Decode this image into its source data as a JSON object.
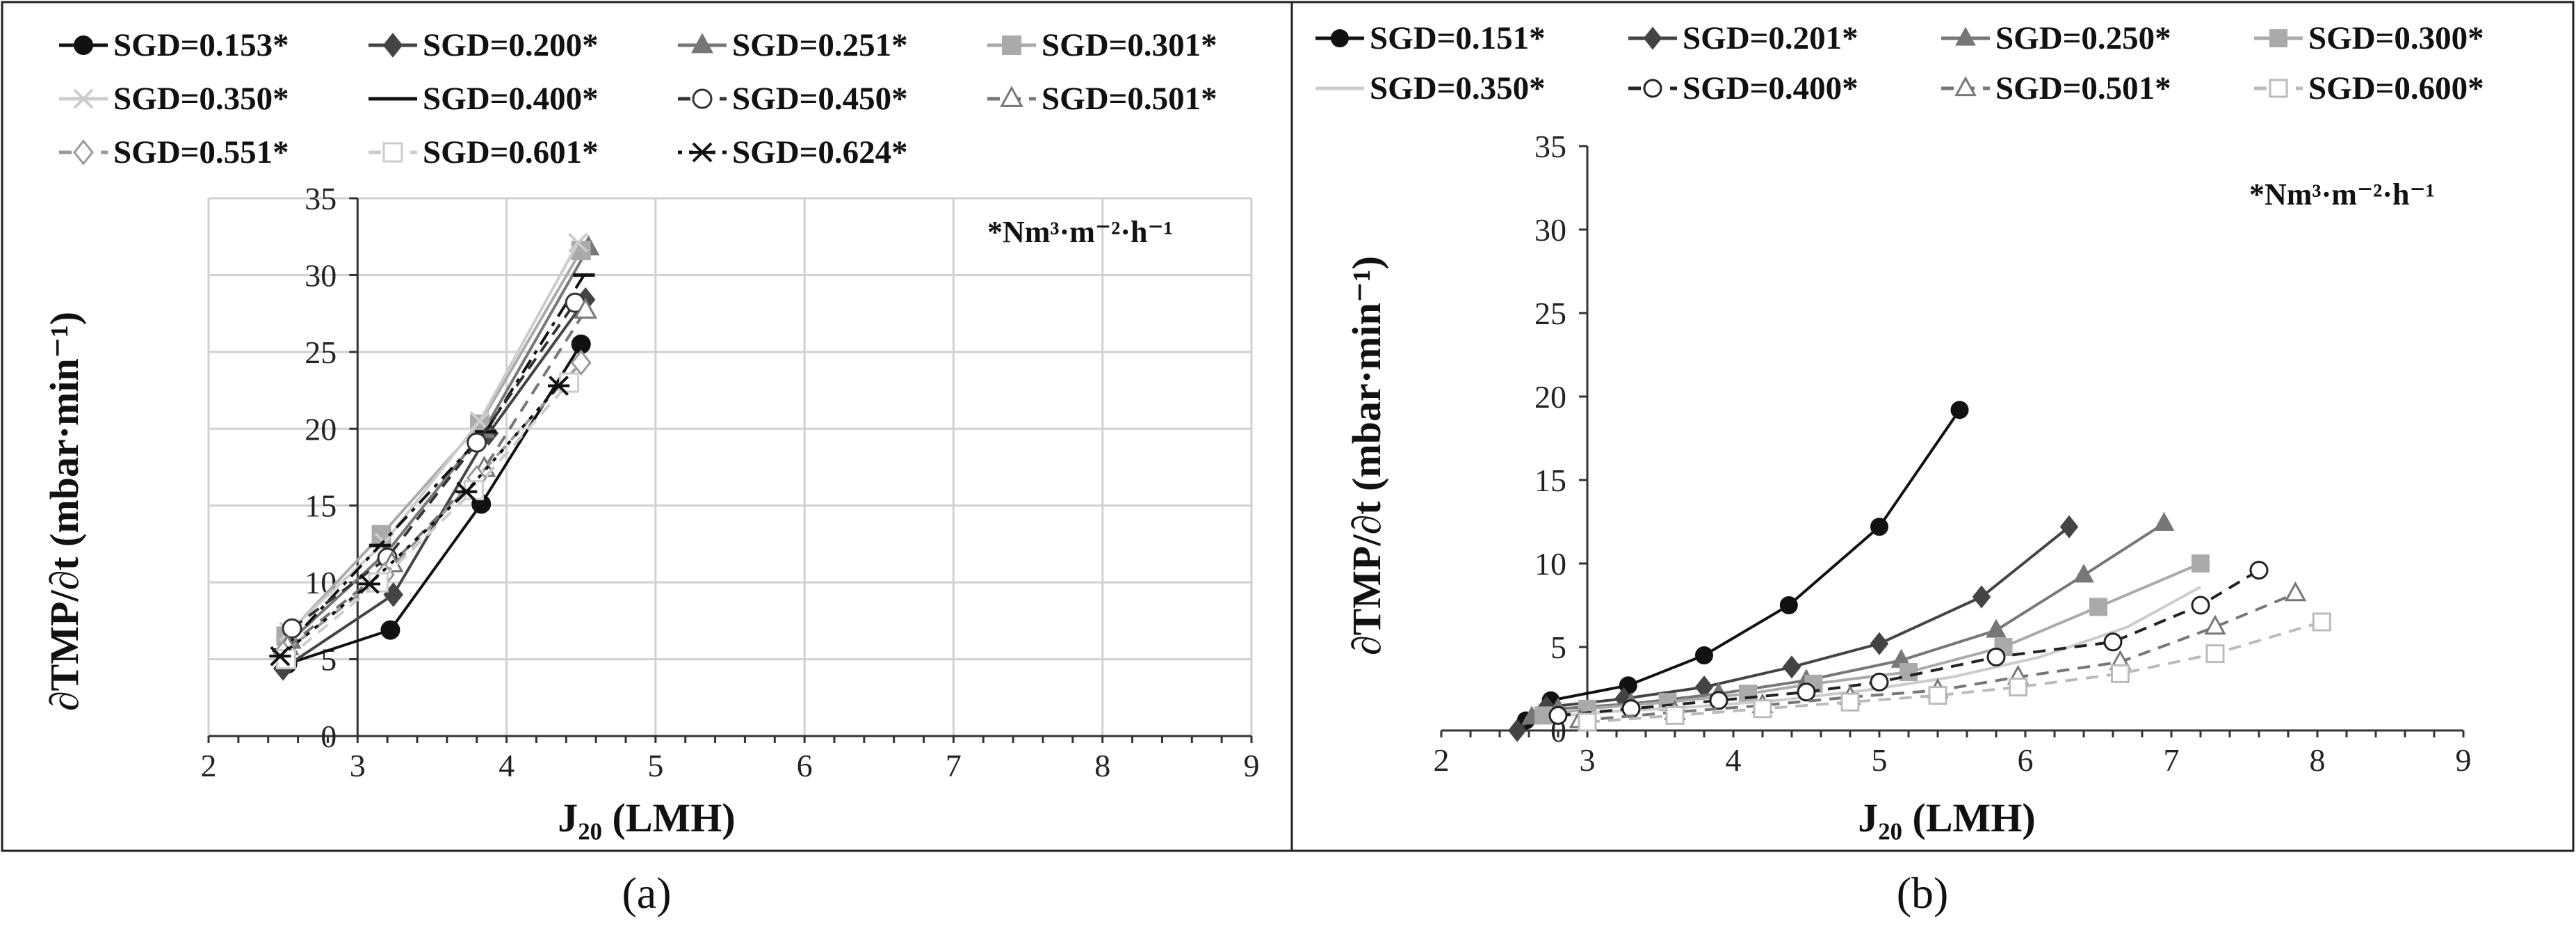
{
  "panels": [
    {
      "id": "a",
      "caption": "(a)",
      "ylabel": "∂TMP/∂t (mbar·min⁻¹)",
      "xlabel": "J₂₀ (LMH)",
      "unit_note": "*Nm³·m⁻²·h⁻¹"
    },
    {
      "id": "b",
      "caption": "(b)",
      "ylabel": "∂TMP/∂t (mbar·min⁻¹)",
      "xlabel": "J₂₀ (LMH)",
      "unit_note": "*Nm³·m⁻²·h⁻¹"
    }
  ],
  "chart_data": [
    {
      "type": "line",
      "panel": "a",
      "xlabel": "J₂₀ (LMH)",
      "ylabel": "∂TMP/∂t (mbar·min⁻¹)",
      "xlim": [
        2,
        9
      ],
      "ylim": [
        0,
        35
      ],
      "xticks": [
        2,
        3,
        4,
        5,
        6,
        7,
        8,
        9
      ],
      "yticks": [
        0,
        5,
        10,
        15,
        20,
        25,
        30,
        35
      ],
      "grid": true,
      "legend": "top",
      "series": [
        {
          "name": "SGD=0.153*",
          "color": "#111111",
          "marker": "circle-filled",
          "dash": "solid",
          "x": [
            2.53,
            3.22,
            3.83,
            4.5
          ],
          "y": [
            4.7,
            6.9,
            15.1,
            25.5
          ]
        },
        {
          "name": "SGD=0.200*",
          "color": "#444444",
          "marker": "diamond-filled",
          "dash": "solid",
          "x": [
            2.5,
            3.24,
            3.88,
            4.53
          ],
          "y": [
            4.4,
            9.2,
            19.7,
            28.4
          ]
        },
        {
          "name": "SGD=0.251*",
          "color": "#777777",
          "marker": "triangle-filled",
          "dash": "solid",
          "x": [
            2.55,
            3.2,
            3.85,
            4.55
          ],
          "y": [
            6.2,
            12.0,
            19.9,
            31.8
          ]
        },
        {
          "name": "SGD=0.301*",
          "color": "#aaaaaa",
          "marker": "square-filled",
          "dash": "solid",
          "x": [
            2.52,
            3.16,
            3.82,
            4.5
          ],
          "y": [
            6.5,
            13.1,
            20.3,
            31.6
          ]
        },
        {
          "name": "SGD=0.350*",
          "color": "#cccccc",
          "marker": "x",
          "dash": "solid",
          "x": [
            2.54,
            3.18,
            3.82,
            4.48
          ],
          "y": [
            6.8,
            12.6,
            20.5,
            32.1
          ]
        },
        {
          "name": "SGD=0.400*",
          "color": "#111111",
          "marker": "dash",
          "dash": "dashdot",
          "x": [
            2.5,
            3.15,
            3.86,
            4.52
          ],
          "y": [
            5.6,
            12.4,
            19.8,
            30.0
          ]
        },
        {
          "name": "SGD=0.450*",
          "color": "#333333",
          "marker": "circle-open",
          "dash": "dash",
          "x": [
            2.56,
            3.2,
            3.8,
            4.46
          ],
          "y": [
            7.0,
            11.6,
            19.1,
            28.2
          ]
        },
        {
          "name": "SGD=0.501*",
          "color": "#777777",
          "marker": "triangle-open",
          "dash": "dash",
          "x": [
            2.53,
            3.23,
            3.85,
            4.53
          ],
          "y": [
            5.8,
            11.2,
            17.4,
            27.7
          ]
        },
        {
          "name": "SGD=0.551*",
          "color": "#999999",
          "marker": "diamond-open",
          "dash": "dash",
          "x": [
            2.5,
            3.18,
            3.8,
            4.5
          ],
          "y": [
            5.4,
            10.5,
            16.8,
            24.3
          ]
        },
        {
          "name": "SGD=0.601*",
          "color": "#cccccc",
          "marker": "square-open",
          "dash": "dash",
          "x": [
            2.52,
            3.14,
            3.78,
            4.42
          ],
          "y": [
            5.0,
            10.0,
            16.0,
            23.0
          ]
        },
        {
          "name": "SGD=0.624*",
          "color": "#111111",
          "marker": "star",
          "dash": "dot",
          "x": [
            2.48,
            3.08,
            3.73,
            4.35
          ],
          "y": [
            5.2,
            9.9,
            15.9,
            22.8
          ]
        }
      ]
    },
    {
      "type": "line",
      "panel": "b",
      "xlabel": "J₂₀ (LMH)",
      "ylabel": "∂TMP/∂t (mbar·min⁻¹)",
      "xlim": [
        2,
        9
      ],
      "ylim": [
        0,
        35
      ],
      "xticks": [
        2,
        3,
        4,
        5,
        6,
        7,
        8,
        9
      ],
      "yticks": [
        0,
        5,
        10,
        15,
        20,
        25,
        30,
        35
      ],
      "grid": false,
      "legend": "top",
      "series": [
        {
          "name": "SGD=0.151*",
          "color": "#111111",
          "marker": "circle-filled",
          "dash": "solid",
          "x": [
            2.58,
            2.75,
            3.28,
            3.8,
            4.38,
            5.0,
            5.55
          ],
          "y": [
            0.6,
            1.8,
            2.7,
            4.5,
            7.5,
            12.2,
            19.2
          ]
        },
        {
          "name": "SGD=0.201*",
          "color": "#444444",
          "marker": "diamond-filled",
          "dash": "solid",
          "x": [
            2.52,
            2.72,
            3.25,
            3.8,
            4.4,
            5.0,
            5.7,
            6.3
          ],
          "y": [
            0.0,
            1.4,
            1.9,
            2.6,
            3.8,
            5.2,
            8.0,
            12.2
          ]
        },
        {
          "name": "SGD=0.250*",
          "color": "#777777",
          "marker": "triangle-filled",
          "dash": "solid",
          "x": [
            2.62,
            2.8,
            3.3,
            3.9,
            4.5,
            5.15,
            5.8,
            6.4,
            6.95
          ],
          "y": [
            0.8,
            1.3,
            1.6,
            2.2,
            3.0,
            4.2,
            6.0,
            9.3,
            12.4
          ]
        },
        {
          "name": "SGD=0.300*",
          "color": "#aaaaaa",
          "marker": "square-filled",
          "dash": "solid",
          "x": [
            2.7,
            3.0,
            3.55,
            4.1,
            4.55,
            5.2,
            5.85,
            6.5,
            7.2
          ],
          "y": [
            0.9,
            1.3,
            1.7,
            2.2,
            2.8,
            3.5,
            5.0,
            7.4,
            10.0
          ]
        },
        {
          "name": "SGD=0.350*",
          "color": "#cccccc",
          "marker": "none",
          "dash": "solid",
          "x": [
            2.75,
            3.1,
            3.7,
            4.3,
            4.9,
            5.5,
            6.1,
            6.7,
            7.2
          ],
          "y": [
            0.8,
            1.1,
            1.4,
            1.8,
            2.4,
            3.2,
            4.4,
            6.2,
            8.6
          ]
        },
        {
          "name": "SGD=0.400*",
          "color": "#222222",
          "marker": "circle-open",
          "dash": "dash",
          "x": [
            2.8,
            3.3,
            3.9,
            4.5,
            5.0,
            5.8,
            6.6,
            7.2,
            7.6
          ],
          "y": [
            0.9,
            1.3,
            1.8,
            2.3,
            2.9,
            4.4,
            5.3,
            7.5,
            9.6
          ]
        },
        {
          "name": "SGD=0.501*",
          "color": "#777777",
          "marker": "triangle-open",
          "dash": "dash",
          "x": [
            2.95,
            3.6,
            4.2,
            4.8,
            5.4,
            5.95,
            6.65,
            7.3,
            7.85
          ],
          "y": [
            0.6,
            1.1,
            1.5,
            2.0,
            2.4,
            3.2,
            4.1,
            6.2,
            8.2
          ]
        },
        {
          "name": "SGD=0.600*",
          "color": "#bbbbbb",
          "marker": "square-open",
          "dash": "dash",
          "x": [
            3.0,
            3.6,
            4.2,
            4.8,
            5.4,
            5.95,
            6.65,
            7.3,
            8.03
          ],
          "y": [
            0.5,
            0.9,
            1.3,
            1.7,
            2.1,
            2.6,
            3.4,
            4.6,
            6.5
          ]
        }
      ]
    }
  ]
}
